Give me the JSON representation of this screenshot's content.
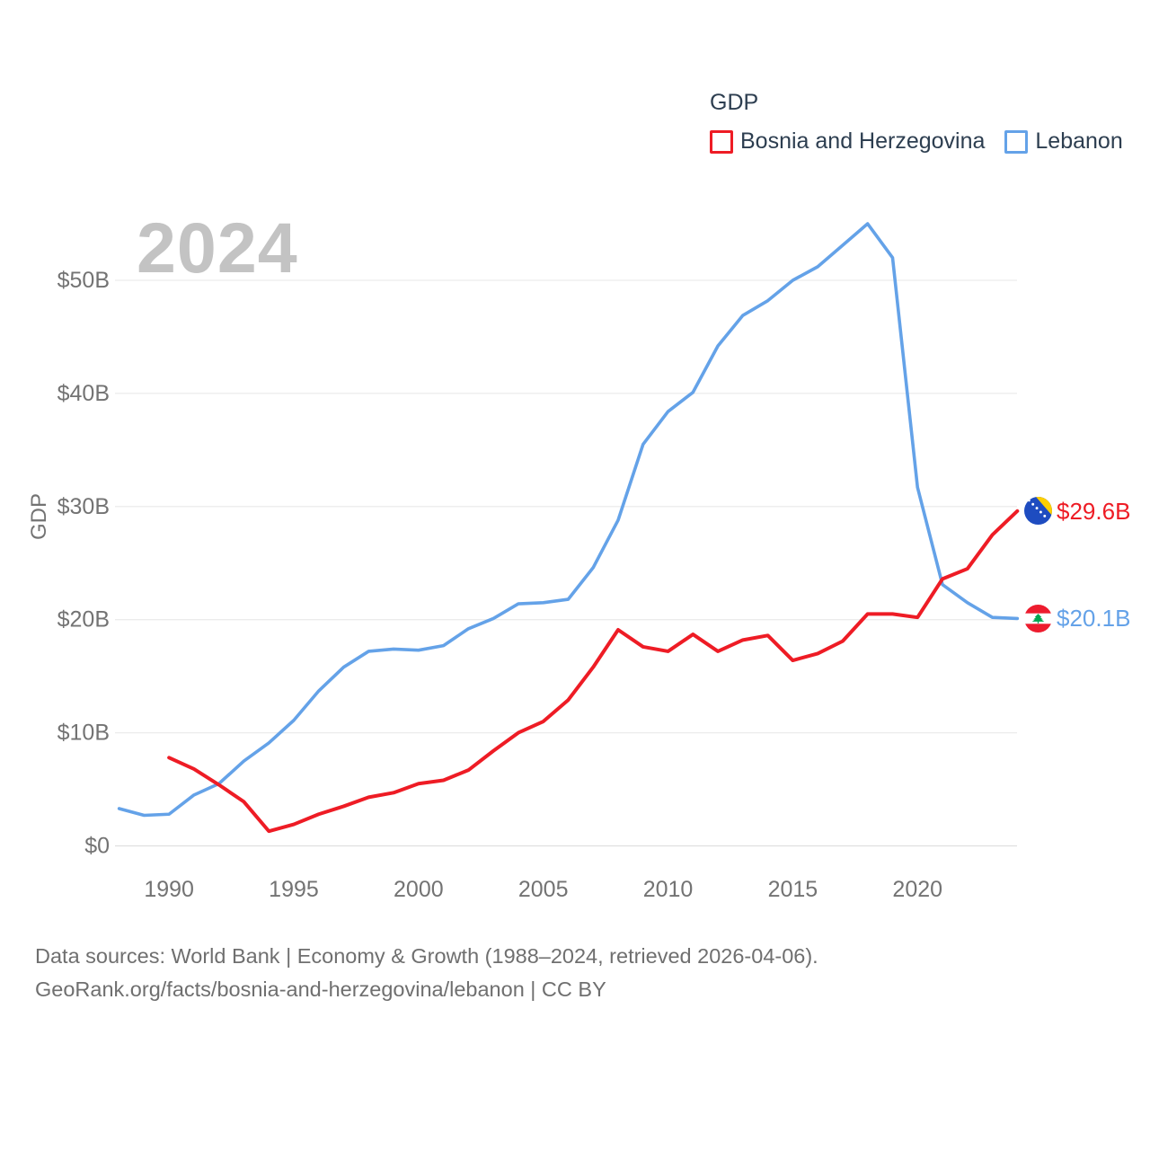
{
  "legend": {
    "title": "GDP",
    "items": [
      {
        "label": "Bosnia and Herzegovina",
        "color": "#ee1c25"
      },
      {
        "label": "Lebanon",
        "color": "#64a2e8"
      }
    ]
  },
  "watermark": "2024",
  "chart_data": {
    "type": "line",
    "title": "GDP",
    "xlabel": "",
    "ylabel": "GDP",
    "xlim": [
      1988,
      2024
    ],
    "ylim": [
      0,
      57
    ],
    "grid": true,
    "legend_position": "top-right",
    "x_ticks": [
      1990,
      1995,
      2000,
      2005,
      2010,
      2015,
      2020
    ],
    "y_ticks": [
      0,
      10,
      20,
      30,
      40,
      50
    ],
    "y_tick_labels": [
      "$0",
      "$10B",
      "$20B",
      "$30B",
      "$40B",
      "$50B"
    ],
    "x": [
      1988,
      1989,
      1990,
      1991,
      1992,
      1993,
      1994,
      1995,
      1996,
      1997,
      1998,
      1999,
      2000,
      2001,
      2002,
      2003,
      2004,
      2005,
      2006,
      2007,
      2008,
      2009,
      2010,
      2011,
      2012,
      2013,
      2014,
      2015,
      2016,
      2017,
      2018,
      2019,
      2020,
      2021,
      2022,
      2023,
      2024
    ],
    "series": [
      {
        "name": "Bosnia and Herzegovina",
        "color": "#ee1c25",
        "line_width": 4,
        "end_label": "$29.6B",
        "flag": "bosnia-and-herzegovina",
        "values": [
          null,
          null,
          7.8,
          6.8,
          5.4,
          3.9,
          1.3,
          1.9,
          2.8,
          3.5,
          4.3,
          4.7,
          5.5,
          5.8,
          6.7,
          8.4,
          10.0,
          11.0,
          12.9,
          15.8,
          19.1,
          17.6,
          17.2,
          18.7,
          17.2,
          18.2,
          18.6,
          16.4,
          17.0,
          18.1,
          20.5,
          20.5,
          20.2,
          23.6,
          24.5,
          27.5,
          29.6
        ]
      },
      {
        "name": "Lebanon",
        "color": "#64a2e8",
        "line_width": 3.6,
        "end_label": "$20.1B",
        "flag": "lebanon",
        "values": [
          3.3,
          2.7,
          2.8,
          4.5,
          5.5,
          7.5,
          9.1,
          11.1,
          13.7,
          15.8,
          17.2,
          17.4,
          17.3,
          17.7,
          19.2,
          20.1,
          21.4,
          21.5,
          21.8,
          24.6,
          28.8,
          35.5,
          38.4,
          40.1,
          44.2,
          46.9,
          48.2,
          50.0,
          51.2,
          53.1,
          55.0,
          52.0,
          31.7,
          23.1,
          21.5,
          20.2,
          20.1
        ]
      }
    ]
  },
  "footer": {
    "line1": "Data sources: World Bank | Economy & Growth (1988–2024, retrieved 2026-04-06).",
    "line2": "GeoRank.org/facts/bosnia-and-herzegovina/lebanon | CC BY"
  }
}
